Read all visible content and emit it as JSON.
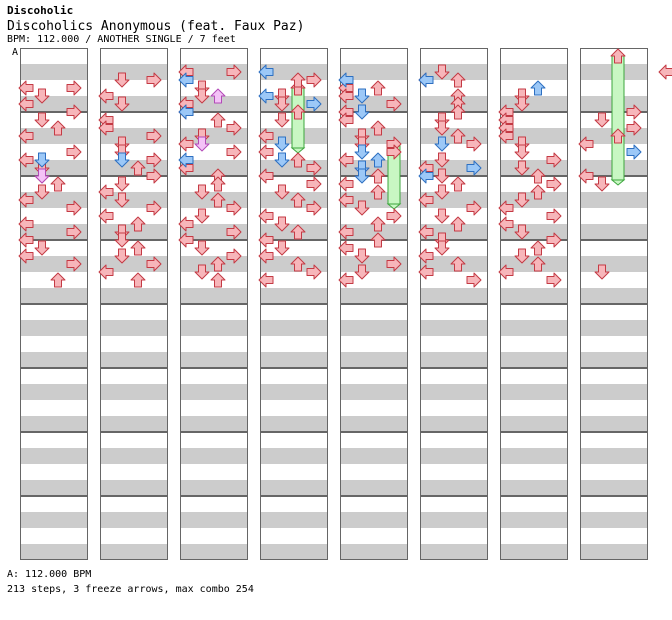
{
  "header": {
    "title": "Discoholic",
    "song": "Discoholics Anonymous (feat. Faux Paz)",
    "meta": "BPM: 112.000 / ANOTHER SINGLE / 7 feet",
    "segment_marker": "A"
  },
  "footer": {
    "bpm": "A: 112.000 BPM",
    "stats": "213 steps, 3 freeze arrows, max combo 254"
  },
  "chart_data": {
    "type": "step-chart",
    "columns": 8,
    "measures_per_column": 8,
    "lanes": [
      "left",
      "down",
      "up",
      "right"
    ],
    "colors": {
      "quarter": "#f47e85",
      "eighth": "#5ea8f0",
      "sixteenth": "#e680f0",
      "freeze_body": "#c8f7c3",
      "freeze_border": "#3da63d",
      "stripe": "#cccccc",
      "border": "#666666"
    },
    "steps": [
      [
        2,
        2,
        "L"
      ],
      [
        2,
        2,
        "R"
      ],
      [
        2,
        5,
        "D"
      ],
      [
        2,
        8,
        "L"
      ],
      [
        2,
        8,
        "D"
      ],
      [
        2,
        8,
        "R"
      ],
      [
        3,
        1,
        "D"
      ],
      [
        3,
        1,
        "R"
      ],
      [
        3,
        3,
        "U"
      ],
      [
        3,
        3,
        "R"
      ],
      [
        3,
        5,
        "L"
      ],
      [
        3,
        5,
        "U"
      ],
      [
        4,
        0,
        "L"
      ],
      [
        4,
        0,
        "R"
      ],
      [
        4,
        2,
        "D"
      ],
      [
        4,
        4,
        "L"
      ],
      [
        4,
        4,
        "U"
      ],
      [
        5,
        0,
        "D"
      ],
      [
        5,
        1,
        "L"
      ],
      [
        5,
        2,
        "D"
      ],
      [
        5,
        3,
        "D"
      ],
      [
        5,
        4,
        "L"
      ],
      [
        5,
        5,
        "U"
      ],
      [
        5,
        6,
        "D"
      ],
      [
        6,
        0,
        "L"
      ],
      [
        6,
        1,
        "D"
      ],
      [
        6,
        2,
        "L"
      ],
      [
        6,
        3,
        "D"
      ],
      [
        6,
        4,
        "R"
      ],
      [
        6,
        5,
        "U"
      ],
      [
        6,
        6,
        "D"
      ],
      [
        7,
        0,
        "R"
      ],
      [
        7,
        2,
        "L"
      ],
      [
        7,
        3,
        "U"
      ],
      [
        7,
        4,
        "L"
      ],
      [
        7,
        5,
        "U"
      ],
      [
        7,
        6,
        "L"
      ],
      [
        7,
        7,
        "R"
      ],
      [
        8,
        0,
        "D"
      ],
      [
        8,
        1,
        "L"
      ],
      [
        8,
        2,
        "U"
      ],
      [
        8,
        3,
        "D"
      ],
      [
        8,
        4,
        "L"
      ],
      [
        8,
        5,
        "D"
      ],
      [
        8,
        6,
        "L"
      ],
      [
        8,
        7,
        "D"
      ],
      [
        9,
        0,
        "U"
      ],
      [
        9,
        1,
        "L"
      ],
      [
        9,
        2,
        "R"
      ],
      [
        9,
        4,
        "U"
      ],
      [
        9,
        5,
        "D"
      ],
      [
        9,
        6,
        "L"
      ],
      [
        9,
        7,
        "R"
      ],
      [
        10,
        0,
        "L"
      ],
      [
        10,
        1,
        "R"
      ],
      [
        10,
        2,
        "D"
      ],
      [
        10,
        3,
        "L"
      ],
      [
        10,
        4,
        "D"
      ],
      [
        10,
        5,
        "U"
      ],
      [
        10,
        6,
        "L"
      ],
      [
        10,
        7,
        "U"
      ],
      [
        11,
        1,
        "D"
      ],
      [
        11,
        2,
        "L"
      ],
      [
        11,
        4,
        "D"
      ],
      [
        11,
        5,
        "R"
      ],
      [
        11,
        6,
        "D"
      ],
      [
        11,
        7,
        "L"
      ],
      [
        12,
        0,
        "R"
      ],
      [
        12,
        1,
        "D"
      ],
      [
        12,
        2,
        "R"
      ],
      [
        12,
        3,
        "L"
      ],
      [
        12,
        4,
        "R"
      ],
      [
        12,
        6,
        "D"
      ],
      [
        13,
        0,
        "L"
      ],
      [
        13,
        1,
        "R"
      ],
      [
        13,
        3,
        "U"
      ],
      [
        13,
        4,
        "L"
      ],
      [
        13,
        5,
        "D"
      ],
      [
        13,
        6,
        "R"
      ],
      [
        14,
        0,
        "D"
      ],
      [
        14,
        1,
        "U"
      ],
      [
        14,
        2,
        "L"
      ],
      [
        14,
        3,
        "R"
      ],
      [
        14,
        4,
        "D"
      ],
      [
        14,
        5,
        "L"
      ],
      [
        14,
        6,
        "D"
      ],
      [
        15,
        0,
        "D"
      ],
      [
        15,
        1,
        "R"
      ],
      [
        15,
        2,
        "U"
      ],
      [
        15,
        3,
        "L"
      ],
      [
        15,
        4,
        "U"
      ],
      [
        15,
        5,
        "D"
      ],
      [
        15,
        6,
        "U"
      ],
      [
        15,
        7,
        "L"
      ],
      [
        16,
        0,
        "U"
      ],
      [
        16,
        1,
        "D"
      ],
      [
        16,
        2,
        "U"
      ],
      [
        16,
        3,
        "R"
      ],
      [
        16,
        4,
        "L"
      ],
      [
        16,
        5,
        "U"
      ],
      [
        16,
        6,
        "R"
      ],
      [
        16,
        7,
        "D"
      ],
      [
        17,
        0,
        "D"
      ],
      [
        17,
        1,
        "L"
      ],
      [
        17,
        2,
        "D"
      ],
      [
        17,
        3,
        "D"
      ],
      [
        17,
        4,
        "U"
      ],
      [
        17,
        5,
        "D"
      ],
      [
        17,
        6,
        "U"
      ],
      [
        18,
        0,
        "L"
      ],
      [
        18,
        1,
        "D"
      ],
      [
        18,
        2,
        "U"
      ],
      [
        18,
        3,
        "U"
      ],
      [
        18,
        4,
        "L"
      ],
      [
        18,
        5,
        "L"
      ],
      [
        18,
        6,
        "D"
      ],
      [
        19,
        0,
        "R"
      ],
      [
        19,
        1,
        "R"
      ],
      [
        19,
        2,
        "R"
      ],
      [
        19,
        3,
        "R"
      ],
      [
        19,
        4,
        "D"
      ],
      [
        19,
        5,
        "R"
      ],
      [
        19,
        6,
        "L"
      ],
      [
        20,
        1,
        "L"
      ],
      [
        20,
        2,
        "D"
      ],
      [
        20,
        3,
        "L"
      ],
      [
        20,
        4,
        "R"
      ],
      [
        20,
        5,
        "D"
      ],
      [
        20,
        6,
        "R"
      ],
      [
        21,
        0,
        "L"
      ],
      [
        21,
        1,
        "U"
      ],
      [
        21,
        2,
        "L"
      ],
      [
        21,
        3,
        "D"
      ],
      [
        21,
        4,
        "U"
      ],
      [
        21,
        5,
        "U"
      ],
      [
        21,
        6,
        "L"
      ],
      [
        22,
        0,
        "R"
      ],
      [
        22,
        1,
        "D"
      ],
      [
        22,
        2,
        "R"
      ],
      [
        22,
        3,
        "U"
      ],
      [
        22,
        4,
        "L"
      ],
      [
        22,
        5,
        "L"
      ],
      [
        22,
        6,
        "D"
      ],
      [
        23,
        0,
        "L"
      ],
      [
        23,
        1,
        "D"
      ],
      [
        23,
        2,
        "L"
      ],
      [
        23,
        3,
        "L"
      ],
      [
        23,
        4,
        "U"
      ],
      [
        23,
        5,
        "D"
      ],
      [
        23,
        6,
        "R"
      ],
      [
        24,
        0,
        "D"
      ],
      [
        24,
        1,
        "U"
      ],
      [
        24,
        2,
        "D"
      ],
      [
        24,
        3,
        "D"
      ],
      [
        24,
        4,
        "L"
      ],
      [
        24,
        5,
        "D"
      ],
      [
        24,
        6,
        "U"
      ],
      [
        25,
        0,
        "L"
      ],
      [
        25,
        1,
        "D"
      ],
      [
        25,
        2,
        "R"
      ],
      [
        25,
        3,
        "L"
      ],
      [
        25,
        4,
        "D"
      ],
      [
        25,
        5,
        "L"
      ],
      [
        25,
        6,
        "D"
      ],
      [
        26,
        0,
        "R"
      ],
      [
        26,
        1,
        "R"
      ],
      [
        26,
        2,
        "U"
      ],
      [
        26,
        3,
        "U"
      ],
      [
        26,
        4,
        "R"
      ],
      [
        26,
        5,
        "U"
      ],
      [
        26,
        6,
        "U"
      ],
      [
        27,
        1,
        "L"
      ],
      [
        27,
        2,
        "D"
      ],
      [
        27,
        3,
        "R"
      ],
      [
        27,
        4,
        "D"
      ],
      [
        27,
        5,
        "L"
      ],
      [
        27,
        6,
        "L"
      ],
      [
        27,
        7,
        "D"
      ],
      [
        28,
        0,
        "U"
      ],
      [
        28,
        1,
        "U"
      ],
      [
        28,
        2,
        "U"
      ],
      [
        28,
        3,
        "L"
      ],
      [
        28,
        4,
        "L"
      ],
      [
        28,
        5,
        "R"
      ],
      [
        28,
        6,
        "R"
      ]
    ],
    "blue_steps": [
      [
        2,
        3,
        "L"
      ],
      [
        3,
        2,
        "L"
      ],
      [
        3,
        4,
        "L"
      ],
      [
        3,
        5,
        "L"
      ],
      [
        4,
        6,
        "U"
      ],
      [
        5,
        3,
        "L"
      ],
      [
        5,
        4,
        "D"
      ],
      [
        6,
        3,
        "R"
      ],
      [
        7,
        2,
        "L"
      ],
      [
        7,
        4,
        "D"
      ],
      [
        11,
        3,
        "D"
      ],
      [
        11,
        5,
        "D"
      ],
      [
        12,
        4,
        "D"
      ],
      [
        12,
        7,
        "R"
      ],
      [
        13,
        0,
        "D"
      ],
      [
        13,
        1,
        "D"
      ],
      [
        13,
        2,
        "L"
      ],
      [
        13,
        3,
        "D"
      ],
      [
        13,
        4,
        "U"
      ],
      [
        14,
        4,
        "D"
      ],
      [
        14,
        5,
        "R"
      ],
      [
        15,
        4,
        "D"
      ],
      [
        15,
        5,
        "L"
      ]
    ],
    "pink_steps": [
      [
        5,
        2,
        "U"
      ],
      [
        11,
        2,
        "D"
      ],
      [
        15,
        0,
        "D"
      ]
    ],
    "freezes": [
      [
        4,
        3,
        "U",
        2
      ],
      [
        11,
        4,
        "R",
        2
      ],
      [
        0,
        7,
        "U",
        4
      ]
    ]
  }
}
